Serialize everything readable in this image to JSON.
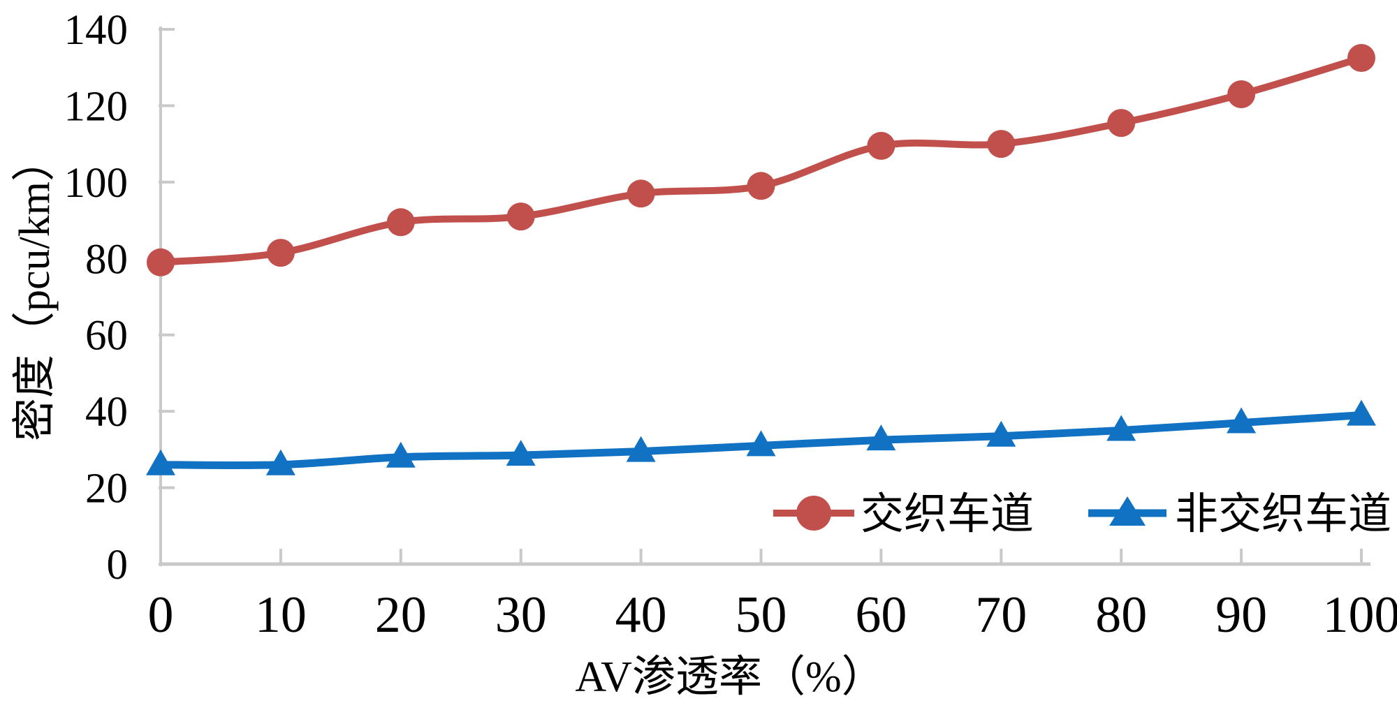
{
  "chart_data": {
    "type": "line",
    "x": [
      0,
      10,
      20,
      30,
      40,
      50,
      60,
      70,
      80,
      90,
      100
    ],
    "xlabel": "AV渗透率（%）",
    "ylabel": "密度（pcu/km）",
    "xlim": [
      0,
      100
    ],
    "ylim": [
      0,
      140
    ],
    "ytick_step": 20,
    "xtick_labels": [
      "0",
      "10",
      "20",
      "30",
      "40",
      "50",
      "60",
      "70",
      "80",
      "90",
      "100"
    ],
    "ytick_labels": [
      "0",
      "20",
      "40",
      "60",
      "80",
      "100",
      "120",
      "140"
    ],
    "grid": "off",
    "legend_position": "inside-bottom-right",
    "series": [
      {
        "name": "交织车道",
        "marker": "circle",
        "color": "#C1504C",
        "values": [
          79,
          81.5,
          89.5,
          91,
          97,
          99,
          109.5,
          110,
          115.5,
          123,
          132.5
        ]
      },
      {
        "name": "非交织车道",
        "marker": "triangle",
        "color": "#1171C2",
        "values": [
          26,
          26,
          28,
          28.5,
          29.5,
          31,
          32.5,
          33.5,
          35,
          37,
          39
        ]
      }
    ],
    "axis_color": "#C9C9C9"
  }
}
